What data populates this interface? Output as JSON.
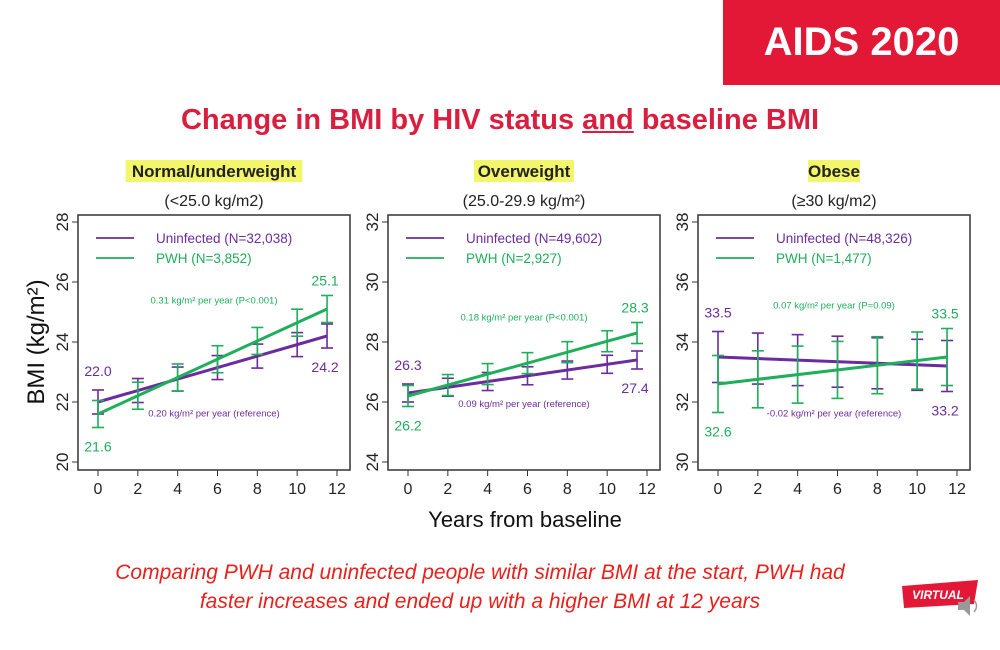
{
  "badge": "AIDS 2020",
  "title": {
    "before": "Change in BMI by HIV status ",
    "underlined": "and",
    "after": " baseline BMI"
  },
  "caption": [
    "Comparing PWH and uninfected people with similar BMI at the start, PWH had",
    "faster increases and ended up with a higher BMI at 12 years"
  ],
  "logo": "VIRTUAL",
  "colors": {
    "uninfected": "#6a2c9e",
    "pwh": "#1fae5a",
    "highlight": "#f3f56a",
    "brand": "#e31837"
  },
  "chart_data": [
    {
      "type": "line",
      "heading": "Normal/underweight",
      "subheading": "(<25.0 kg/m2)",
      "ylabel": "BMI (kg/m²)",
      "xlabel": "",
      "xlim": [
        0,
        12
      ],
      "ylim": [
        20,
        28
      ],
      "xticks": [
        0,
        2,
        4,
        6,
        8,
        10,
        12
      ],
      "yticks": [
        20,
        22,
        24,
        26,
        28
      ],
      "x": [
        0,
        2,
        4,
        6,
        8,
        10,
        11.5
      ],
      "series": [
        {
          "name": "Uninfected (N=32,038)",
          "start": 22.0,
          "end": 24.2,
          "ci": 0.4,
          "start_label": "22.0",
          "end_label": "24.2",
          "slope_label": "0.20 kg/m² per year (reference)"
        },
        {
          "name": "PWH (N=3,852)",
          "start": 21.6,
          "end": 25.1,
          "ci": 0.45,
          "start_label": "21.6",
          "end_label": "25.1",
          "slope_label": "0.31 kg/m² per year (P<0.001)"
        }
      ]
    },
    {
      "type": "line",
      "heading": "Overweight",
      "subheading": "(25.0-29.9 kg/m²)",
      "ylabel": "",
      "xlabel": "Years from baseline",
      "xlim": [
        0,
        12
      ],
      "ylim": [
        24,
        32
      ],
      "xticks": [
        0,
        2,
        4,
        6,
        8,
        10,
        12
      ],
      "yticks": [
        24,
        26,
        28,
        30,
        32
      ],
      "x": [
        0,
        2,
        4,
        6,
        8,
        10,
        11.5
      ],
      "series": [
        {
          "name": "Uninfected (N=49,602)",
          "start": 26.3,
          "end": 27.4,
          "ci": 0.3,
          "start_label": "26.3",
          "end_label": "27.4",
          "slope_label": "0.09 kg/m² per year (reference)"
        },
        {
          "name": "PWH (N=2,927)",
          "start": 26.2,
          "end": 28.3,
          "ci": 0.35,
          "start_label": "26.2",
          "end_label": "28.3",
          "slope_label": "0.18 kg/m² per year (P<0.001)"
        }
      ]
    },
    {
      "type": "line",
      "heading": "Obese",
      "subheading": "(≥30 kg/m2)",
      "ylabel": "",
      "xlabel": "",
      "xlim": [
        0,
        12
      ],
      "ylim": [
        30,
        38
      ],
      "xticks": [
        0,
        2,
        4,
        6,
        8,
        10,
        12
      ],
      "yticks": [
        30,
        32,
        34,
        36,
        38
      ],
      "x": [
        0,
        2,
        4,
        6,
        8,
        10,
        11.5
      ],
      "series": [
        {
          "name": "Uninfected (N=48,326)",
          "start": 33.5,
          "end": 33.2,
          "ci": 0.85,
          "start_label": "33.5",
          "end_label": "33.2",
          "slope_label": "-0.02 kg/m² per year (reference)"
        },
        {
          "name": "PWH (N=1,477)",
          "start": 32.6,
          "end": 33.5,
          "ci": 0.95,
          "start_label": "32.6",
          "end_label": "33.5",
          "slope_label": "0.07 kg/m² per year (P=0.09)"
        }
      ]
    }
  ]
}
